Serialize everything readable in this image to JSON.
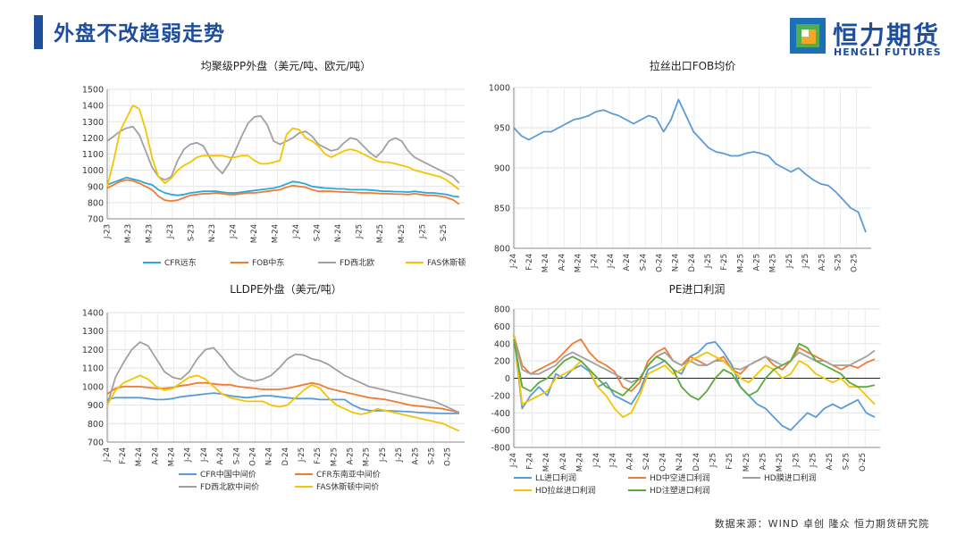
{
  "header": {
    "title": "外盘不改趋弱走势"
  },
  "logo": {
    "name": "恒力期货",
    "sub": "HENGLI FUTURES",
    "colors": [
      "#1f6fb8",
      "#4caf50",
      "#f5a623"
    ]
  },
  "footer": {
    "source": "数据来源：WIND  卓创  隆众  恒力期货研究院"
  },
  "chart_data": [
    {
      "type": "line",
      "title": "均聚级PP外盘（美元/吨、欧元/吨）",
      "ylim": [
        700,
        1500
      ],
      "yticks": [
        700,
        800,
        900,
        1000,
        1100,
        1200,
        1300,
        1400,
        1500
      ],
      "xlabels": [
        "J-23",
        "M-23",
        "M-23",
        "J-23",
        "S-23",
        "N-23",
        "J-24",
        "M-24",
        "M-24",
        "J-24",
        "S-24",
        "N-24",
        "J-25",
        "M-25",
        "M-25",
        "J-25",
        "S-25"
      ],
      "grid": true,
      "legend_position": "bottom",
      "series": [
        {
          "name": "CFR远东",
          "color": "#29a8e0",
          "values": [
            910,
            925,
            940,
            955,
            945,
            935,
            920,
            910,
            880,
            860,
            850,
            845,
            850,
            860,
            865,
            870,
            870,
            870,
            865,
            860,
            860,
            865,
            870,
            875,
            880,
            885,
            890,
            900,
            915,
            930,
            925,
            915,
            900,
            895,
            890,
            888,
            885,
            885,
            880,
            880,
            880,
            878,
            875,
            870,
            870,
            868,
            868,
            865,
            870,
            865,
            860,
            860,
            855,
            850,
            840,
            835
          ]
        },
        {
          "name": "FOB中东",
          "color": "#f07b32",
          "values": [
            890,
            910,
            930,
            940,
            935,
            920,
            900,
            880,
            840,
            815,
            810,
            815,
            830,
            845,
            850,
            855,
            855,
            860,
            855,
            850,
            850,
            855,
            860,
            860,
            865,
            870,
            875,
            880,
            895,
            905,
            900,
            895,
            880,
            870,
            870,
            870,
            868,
            865,
            865,
            862,
            860,
            860,
            858,
            855,
            855,
            852,
            852,
            850,
            855,
            850,
            845,
            845,
            840,
            832,
            818,
            790
          ]
        },
        {
          "name": "FD西北欧",
          "color": "#a0a0a0",
          "values": [
            1180,
            1210,
            1240,
            1260,
            1270,
            1220,
            1120,
            1020,
            960,
            940,
            960,
            1060,
            1130,
            1160,
            1170,
            1150,
            1080,
            1020,
            980,
            1040,
            1120,
            1210,
            1290,
            1330,
            1335,
            1280,
            1180,
            1160,
            1180,
            1200,
            1230,
            1240,
            1210,
            1160,
            1140,
            1120,
            1130,
            1170,
            1200,
            1190,
            1150,
            1110,
            1080,
            1120,
            1180,
            1200,
            1180,
            1120,
            1080,
            1060,
            1040,
            1020,
            1000,
            980,
            960,
            920
          ]
        },
        {
          "name": "FAS休斯顿",
          "color": "#f5c400",
          "values": [
            900,
            1060,
            1240,
            1320,
            1400,
            1380,
            1250,
            1080,
            960,
            920,
            950,
            1000,
            1030,
            1050,
            1080,
            1090,
            1090,
            1090,
            1090,
            1080,
            1080,
            1090,
            1090,
            1060,
            1040,
            1040,
            1050,
            1060,
            1220,
            1260,
            1250,
            1200,
            1180,
            1150,
            1100,
            1080,
            1100,
            1120,
            1130,
            1120,
            1100,
            1080,
            1060,
            1050,
            1050,
            1040,
            1030,
            1020,
            1000,
            990,
            980,
            970,
            960,
            940,
            910,
            880
          ]
        }
      ]
    },
    {
      "type": "line",
      "title": "拉丝出口FOB均价",
      "ylim": [
        800,
        1000
      ],
      "yticks": [
        800,
        850,
        900,
        950,
        1000
      ],
      "xlabels": [
        "J-24",
        "F-24",
        "M-24",
        "A-24",
        "M-24",
        "J-24",
        "J-24",
        "A-24",
        "S-24",
        "O-24",
        "N-24",
        "D-24",
        "J-25",
        "F-25",
        "M-25",
        "A-25",
        "M-25",
        "J-25",
        "J-25",
        "A-25",
        "S-25",
        "O-25"
      ],
      "grid": true,
      "series": [
        {
          "name": "拉丝出口FOB均价",
          "color": "#5b9bd5",
          "values": [
            950,
            940,
            935,
            940,
            945,
            945,
            950,
            955,
            960,
            962,
            965,
            970,
            972,
            968,
            965,
            960,
            955,
            960,
            965,
            962,
            945,
            960,
            985,
            965,
            945,
            935,
            925,
            920,
            918,
            915,
            915,
            918,
            920,
            918,
            915,
            905,
            900,
            895,
            900,
            892,
            885,
            880,
            878,
            870,
            860,
            850,
            845,
            820
          ]
        }
      ]
    },
    {
      "type": "line",
      "title": "LLDPE外盘（美元/吨）",
      "ylim": [
        700,
        1400
      ],
      "yticks": [
        700,
        800,
        900,
        1000,
        1100,
        1200,
        1300,
        1400
      ],
      "xlabels": [
        "J-24",
        "F-24",
        "M-24",
        "A-24",
        "M-24",
        "J-24",
        "J-24",
        "A-24",
        "S-24",
        "O-24",
        "N-24",
        "D-24",
        "J-25",
        "F-25",
        "M-25",
        "A-25",
        "M-25",
        "J-25",
        "J-25",
        "A-25",
        "S-25",
        "O-25"
      ],
      "grid": true,
      "legend_position": "bottom",
      "series": [
        {
          "name": "CFR中国中间价",
          "color": "#5b9bd5",
          "values": [
            930,
            940,
            940,
            940,
            940,
            935,
            930,
            930,
            935,
            945,
            950,
            955,
            960,
            965,
            960,
            950,
            945,
            940,
            945,
            950,
            950,
            945,
            940,
            935,
            935,
            935,
            930,
            930,
            930,
            930,
            900,
            880,
            870,
            870,
            870,
            868,
            866,
            864,
            860,
            858,
            856,
            855,
            855,
            855
          ]
        },
        {
          "name": "CFR东南亚中间价",
          "color": "#f07b32",
          "values": [
            960,
            990,
            1000,
            1000,
            1000,
            995,
            990,
            990,
            995,
            1005,
            1010,
            1020,
            1020,
            1015,
            1010,
            1010,
            1000,
            995,
            990,
            985,
            985,
            985,
            990,
            1000,
            1010,
            1020,
            1010,
            990,
            980,
            970,
            960,
            950,
            940,
            935,
            930,
            920,
            910,
            900,
            895,
            890,
            885,
            880,
            870,
            860
          ]
        },
        {
          "name": "FD西北欧中间价",
          "color": "#a0a0a0",
          "values": [
            900,
            1050,
            1130,
            1200,
            1240,
            1220,
            1150,
            1080,
            1050,
            1040,
            1080,
            1150,
            1200,
            1210,
            1160,
            1100,
            1060,
            1040,
            1030,
            1040,
            1060,
            1100,
            1150,
            1175,
            1170,
            1150,
            1140,
            1120,
            1090,
            1060,
            1040,
            1020,
            1000,
            990,
            980,
            970,
            960,
            950,
            940,
            930,
            920,
            900,
            880,
            860
          ]
        },
        {
          "name": "FAS休斯顿中间价",
          "color": "#f5c400",
          "values": [
            900,
            980,
            1020,
            1040,
            1060,
            1040,
            1000,
            980,
            990,
            1020,
            1050,
            1060,
            1040,
            1000,
            960,
            940,
            930,
            920,
            920,
            920,
            900,
            890,
            900,
            940,
            980,
            1010,
            990,
            940,
            900,
            880,
            860,
            850,
            860,
            880,
            870,
            860,
            850,
            840,
            830,
            820,
            810,
            800,
            780,
            760
          ]
        }
      ]
    },
    {
      "type": "line",
      "title": "PE进口利润",
      "ylim": [
        -800,
        800
      ],
      "yticks": [
        -800,
        -600,
        -400,
        -200,
        0,
        200,
        400,
        600,
        800
      ],
      "xlabels": [
        "J-24",
        "F-24",
        "M-24",
        "A-24",
        "M-24",
        "J-24",
        "J-24",
        "A-24",
        "S-24",
        "O-24",
        "N-24",
        "D-24",
        "J-25",
        "F-25",
        "M-25",
        "A-25",
        "M-25",
        "J-25",
        "J-25",
        "A-25",
        "S-25",
        "O-25"
      ],
      "grid": true,
      "legend_position": "bottom",
      "series": [
        {
          "name": "LL进口利润",
          "color": "#5b9bd5",
          "values": [
            500,
            -350,
            -200,
            -100,
            -200,
            50,
            0,
            100,
            150,
            80,
            -100,
            -50,
            -200,
            -250,
            -300,
            -150,
            100,
            150,
            200,
            100,
            50,
            250,
            300,
            400,
            420,
            300,
            150,
            -100,
            -200,
            -300,
            -350,
            -450,
            -550,
            -600,
            -500,
            -400,
            -450,
            -350,
            -300,
            -350,
            -300,
            -250,
            -400,
            -450
          ]
        },
        {
          "name": "HD中空进口利润",
          "color": "#f07b32",
          "values": [
            500,
            150,
            50,
            100,
            150,
            200,
            300,
            400,
            450,
            300,
            200,
            150,
            80,
            -100,
            -150,
            -50,
            200,
            300,
            350,
            200,
            150,
            250,
            200,
            150,
            200,
            250,
            100,
            50,
            150,
            200,
            250,
            150,
            100,
            200,
            350,
            300,
            250,
            200,
            150,
            100,
            150,
            120,
            180,
            220
          ]
        },
        {
          "name": "HD膜进口利润",
          "color": "#a0a0a0",
          "values": [
            480,
            100,
            50,
            50,
            100,
            150,
            250,
            300,
            250,
            200,
            150,
            100,
            50,
            0,
            -50,
            0,
            150,
            250,
            300,
            200,
            150,
            200,
            150,
            150,
            200,
            200,
            120,
            100,
            150,
            200,
            250,
            200,
            150,
            200,
            300,
            250,
            200,
            200,
            150,
            150,
            150,
            200,
            250,
            320
          ]
        },
        {
          "name": "HD拉丝进口利润",
          "color": "#f5c400",
          "values": [
            500,
            -300,
            -250,
            -200,
            -150,
            0,
            50,
            100,
            200,
            100,
            -100,
            -200,
            -350,
            -450,
            -400,
            -200,
            50,
            100,
            150,
            50,
            100,
            200,
            250,
            300,
            250,
            200,
            100,
            0,
            -50,
            50,
            150,
            100,
            0,
            50,
            200,
            150,
            50,
            0,
            -50,
            0,
            -100,
            -100,
            -200,
            -300
          ]
        },
        {
          "name": "HD注塑进口利润",
          "color": "#5aaa3c",
          "values": [
            450,
            -100,
            -150,
            -50,
            0,
            100,
            200,
            250,
            200,
            100,
            0,
            -100,
            -150,
            -200,
            -100,
            0,
            150,
            250,
            200,
            100,
            -100,
            -200,
            -250,
            -150,
            0,
            100,
            50,
            -100,
            -200,
            -150,
            0,
            100,
            150,
            200,
            400,
            350,
            200,
            150,
            100,
            50,
            -50,
            -100,
            -100,
            -80
          ]
        }
      ]
    }
  ]
}
